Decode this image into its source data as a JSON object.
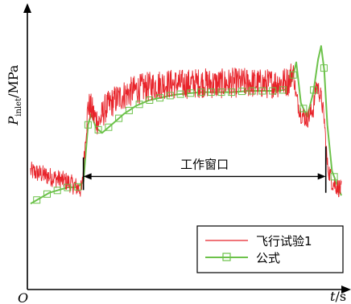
{
  "chart_data": {
    "type": "line",
    "ylabel_main": "P",
    "ylabel_sub": "inlet",
    "ylabel_unit": "/MPa",
    "xlabel_var": "t",
    "xlabel_unit": "/s",
    "origin_label": "O",
    "annotation": "工作窗口",
    "legend": [
      {
        "name": "飞行试验1",
        "color": "#e8232a",
        "marker": "none"
      },
      {
        "name": "公式",
        "color": "#6cc24a",
        "marker": "square"
      }
    ],
    "xlim": [
      0,
      100
    ],
    "ylim": [
      0,
      100
    ],
    "window": [
      17,
      95
    ],
    "series": [
      {
        "name": "飞行试验1",
        "color": "#e8232a",
        "x": [
          0,
          3,
          6,
          9,
          12,
          15,
          16.5,
          17.5,
          18.5,
          19.5,
          20.5,
          22,
          24,
          27,
          30,
          34,
          38,
          42,
          46,
          50,
          55,
          60,
          65,
          70,
          75,
          80,
          83,
          84.5,
          85.5,
          87,
          89,
          91,
          92,
          93.5,
          94.5,
          95.5,
          97,
          100
        ],
        "y": [
          43,
          42,
          41,
          40,
          39,
          37,
          36,
          52,
          67,
          66,
          63,
          61,
          66,
          69,
          71,
          73,
          74,
          75,
          75,
          75,
          75.5,
          75,
          75.5,
          75.5,
          75,
          75.5,
          76,
          80,
          70,
          64,
          62,
          66,
          75,
          70,
          62,
          45,
          39,
          36
        ]
      },
      {
        "name": "公式",
        "color": "#6cc24a",
        "x": [
          0,
          3,
          6,
          9,
          12,
          15,
          17,
          18.5,
          19.5,
          21,
          23,
          26,
          30,
          34,
          38,
          42,
          46,
          50,
          55,
          60,
          65,
          70,
          75,
          80,
          82,
          84,
          85.5,
          87,
          89,
          91,
          92.5,
          93.5,
          94.5,
          95.5,
          97,
          100
        ],
        "y": [
          31,
          33,
          35,
          36,
          37,
          37,
          39,
          60,
          64,
          59,
          57,
          60,
          64,
          67,
          69,
          70,
          71,
          71.5,
          72,
          72,
          72,
          72.5,
          72.5,
          72.5,
          73,
          76,
          83,
          68,
          63,
          72,
          84,
          89,
          80,
          60,
          43,
          34
        ]
      }
    ]
  }
}
